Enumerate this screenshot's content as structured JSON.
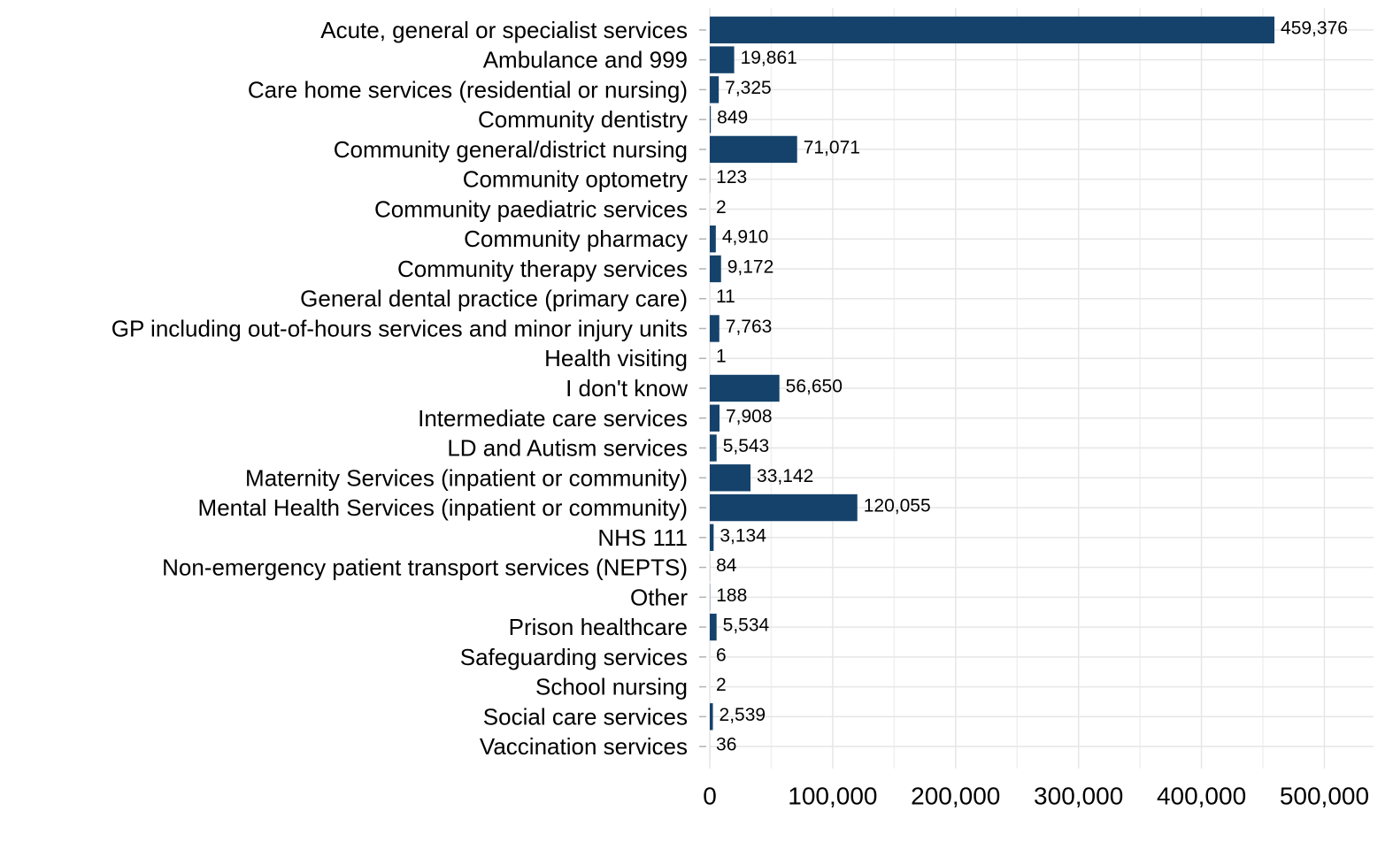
{
  "chart_data": {
    "type": "bar",
    "orientation": "horizontal",
    "categories": [
      "Acute, general or specialist services",
      "Ambulance and 999",
      "Care home services (residential or nursing)",
      "Community dentistry",
      "Community general/district nursing",
      "Community optometry",
      "Community paediatric services",
      "Community pharmacy",
      "Community therapy services",
      "General dental practice (primary care)",
      "GP including out-of-hours services and minor injury units",
      "Health visiting",
      "I don't know",
      "Intermediate care services",
      "LD and Autism services",
      "Maternity Services (inpatient or community)",
      "Mental Health Services (inpatient or community)",
      "NHS 111",
      "Non-emergency patient transport services (NEPTS)",
      "Other",
      "Prison healthcare",
      "Safeguarding services",
      "School nursing",
      "Social care services",
      "Vaccination services"
    ],
    "values": [
      459376,
      19861,
      7325,
      849,
      71071,
      123,
      2,
      4910,
      9172,
      11,
      7763,
      1,
      56650,
      7908,
      5543,
      33142,
      120055,
      3134,
      84,
      188,
      5534,
      6,
      2,
      2539,
      36
    ],
    "value_labels": [
      "459,376",
      "19,861",
      "7,325",
      "849",
      "71,071",
      "123",
      "2",
      "4,910",
      "9,172",
      "11",
      "7,763",
      "1",
      "56,650",
      "7,908",
      "5,543",
      "33,142",
      "120,055",
      "3,134",
      "84",
      "188",
      "5,534",
      "6",
      "2",
      "2,539",
      "36"
    ],
    "x_ticks": [
      0,
      100000,
      200000,
      300000,
      400000,
      500000
    ],
    "x_tick_labels": [
      "0",
      "100,000",
      "200,000",
      "300,000",
      "400,000",
      "500,000"
    ],
    "xlim": [
      0,
      540000
    ],
    "title": "",
    "xlabel": "",
    "ylabel": "",
    "grid": true,
    "legend": "none",
    "bar_color": "#15426b"
  }
}
